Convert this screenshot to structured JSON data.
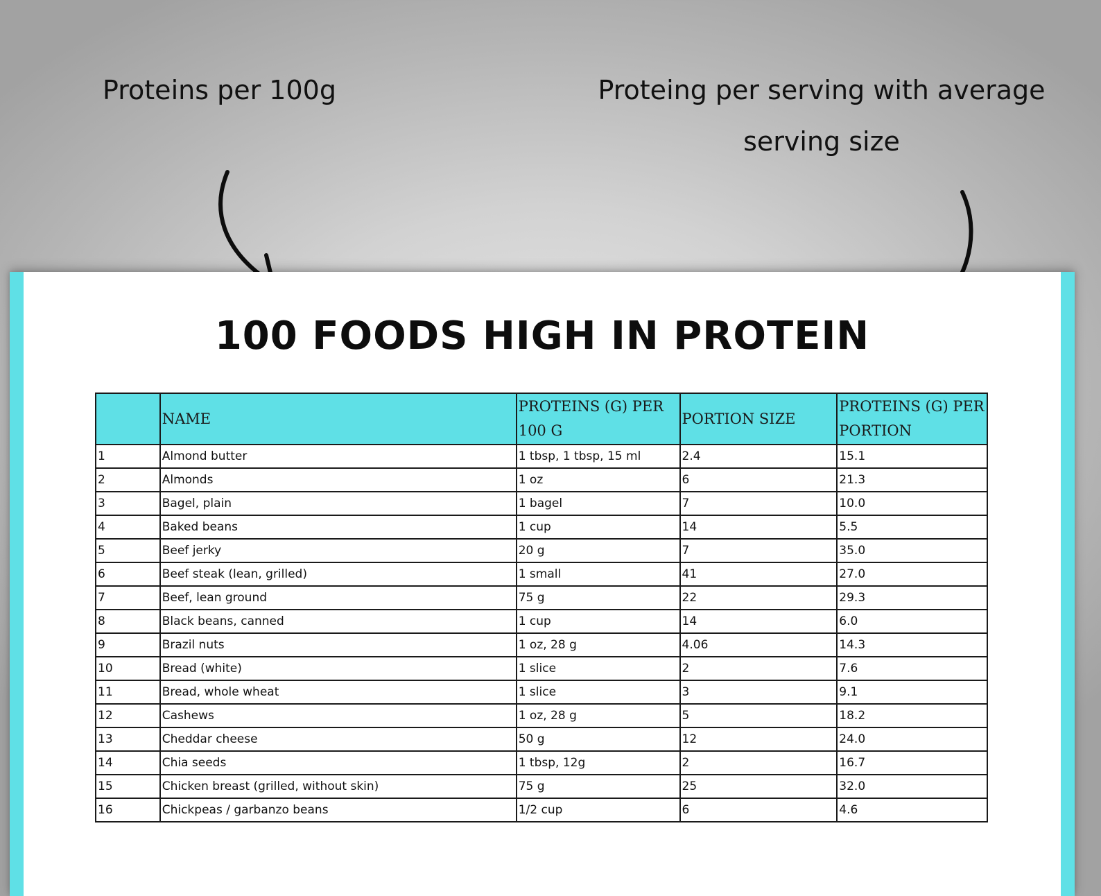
{
  "annotations": {
    "left": "Proteins per 100g",
    "right": "Proteing per serving with average serving size"
  },
  "document": {
    "title": "100 FOODS HIGH IN PROTEIN",
    "accent_color": "#5fe0e6",
    "table": {
      "columns": [
        "",
        "NAME",
        "PROTEINS (G) PER 100 G",
        "PORTION SIZE",
        "PROTEINS (G) PER PORTION"
      ],
      "rows": [
        [
          "1",
          "Almond butter",
          "1 tbsp, 1 tbsp, 15 ml",
          "2.4",
          "15.1"
        ],
        [
          "2",
          "Almonds",
          "1 oz",
          "6",
          "21.3"
        ],
        [
          "3",
          "Bagel, plain",
          "1 bagel",
          "7",
          "10.0"
        ],
        [
          "4",
          "Baked beans",
          "1 cup",
          "14",
          "5.5"
        ],
        [
          "5",
          "Beef jerky",
          "20 g",
          "7",
          "35.0"
        ],
        [
          "6",
          "Beef steak (lean, grilled)",
          "1 small",
          "41",
          "27.0"
        ],
        [
          "7",
          "Beef, lean ground",
          "75 g",
          "22",
          "29.3"
        ],
        [
          "8",
          "Black beans, canned",
          "1 cup",
          "14",
          "6.0"
        ],
        [
          "9",
          "Brazil nuts",
          "1 oz, 28 g",
          "4.06",
          "14.3"
        ],
        [
          "10",
          "Bread (white)",
          "1 slice",
          "2",
          "7.6"
        ],
        [
          "11",
          "Bread, whole wheat",
          "1 slice",
          "3",
          "9.1"
        ],
        [
          "12",
          "Cashews",
          "1 oz, 28 g",
          "5",
          "18.2"
        ],
        [
          "13",
          "Cheddar cheese",
          "50 g",
          "12",
          "24.0"
        ],
        [
          "14",
          "Chia seeds",
          "1 tbsp, 12g",
          "2",
          "16.7"
        ],
        [
          "15",
          "Chicken breast (grilled, without skin)",
          "75 g",
          "25",
          "32.0"
        ],
        [
          "16",
          "Chickpeas / garbanzo beans",
          "1/2 cup",
          "6",
          "4.6"
        ]
      ]
    }
  }
}
